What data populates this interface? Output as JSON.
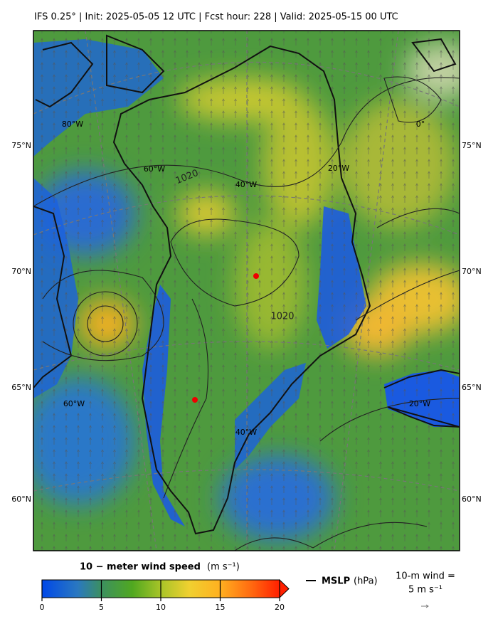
{
  "header": {
    "title": "IFS 0.25°  |  Init: 2025-05-05 12 UTC  |  Fcst hour: 228  |  Valid: 2025-05-15 00 UTC"
  },
  "map": {
    "lat_labels": [
      "75°N",
      "70°N",
      "65°N",
      "60°N"
    ],
    "lon_labels": [
      "80°W",
      "60°W",
      "40°W",
      "20°W",
      "0°",
      "60°W",
      "40°W",
      "20°W"
    ],
    "contour_labels": [
      "1020",
      "1020"
    ]
  },
  "colorbar": {
    "label": "10 − meter wind speed",
    "unit": "(m s⁻¹)",
    "lim": [
      0,
      20
    ],
    "ticks": [
      0,
      5,
      10,
      15,
      20
    ]
  },
  "legend": {
    "mslp_label": "MSLP",
    "mslp_unit": "(hPa)",
    "wind_label": "10-m wind =",
    "wind_scale": "5 m s⁻¹"
  }
}
